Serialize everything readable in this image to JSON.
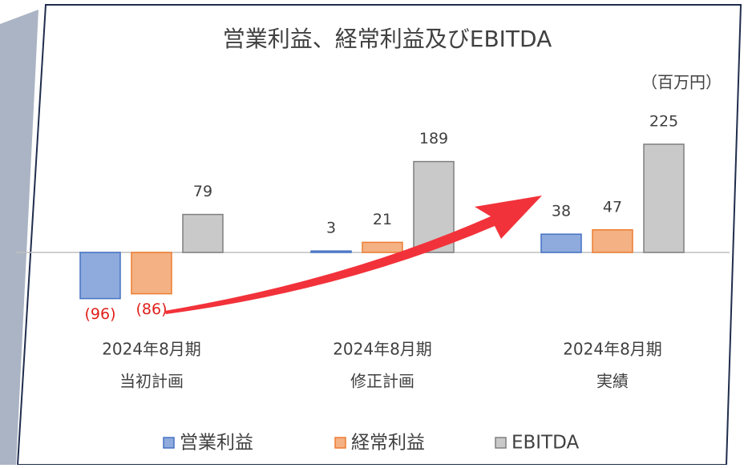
{
  "chart_data": {
    "type": "bar",
    "title": "営業利益、経常利益及びEBITDA",
    "unit": "（百万円）",
    "categories": [
      [
        "2024年8月期",
        "当初計画"
      ],
      [
        "2024年8月期",
        "修正計画"
      ],
      [
        "2024年8月期",
        "実績"
      ]
    ],
    "series": [
      {
        "name": "営業利益",
        "color": "#8faadc",
        "values": [
          -96,
          3,
          38
        ],
        "value_labels": [
          "(96)",
          "3",
          "38"
        ]
      },
      {
        "name": "経常利益",
        "color": "#f4b183",
        "values": [
          -86,
          21,
          47
        ],
        "value_labels": [
          "(86)",
          "21",
          "47"
        ]
      },
      {
        "name": "EBITDA",
        "color": "#c9c9c9",
        "values": [
          79,
          189,
          225
        ]
      }
    ],
    "legend": "bottom"
  }
}
